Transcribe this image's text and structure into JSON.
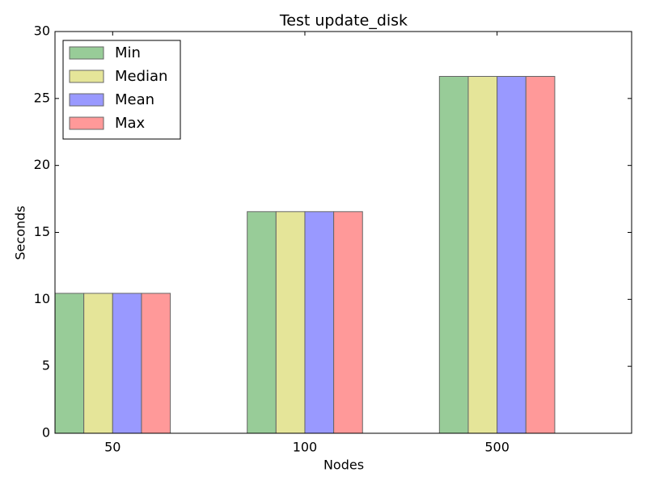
{
  "chart_data": {
    "type": "bar",
    "title": "Test update_disk",
    "x_label": "Nodes",
    "y_label": "Seconds",
    "categories": [
      "50",
      "100",
      "500"
    ],
    "series": [
      {
        "name": "Min",
        "color": "#98cc98",
        "values": [
          10.45,
          16.55,
          26.65
        ]
      },
      {
        "name": "Median",
        "color": "#e5e599",
        "values": [
          10.45,
          16.55,
          26.65
        ]
      },
      {
        "name": "Mean",
        "color": "#9999ff",
        "values": [
          10.45,
          16.55,
          26.65
        ]
      },
      {
        "name": "Max",
        "color": "#ff9999",
        "values": [
          10.45,
          16.55,
          26.65
        ]
      }
    ],
    "ylim": [
      0,
      30
    ],
    "yticks": [
      0,
      5,
      10,
      15,
      20,
      25,
      30
    ],
    "legend": "upper left",
    "grid": false
  }
}
